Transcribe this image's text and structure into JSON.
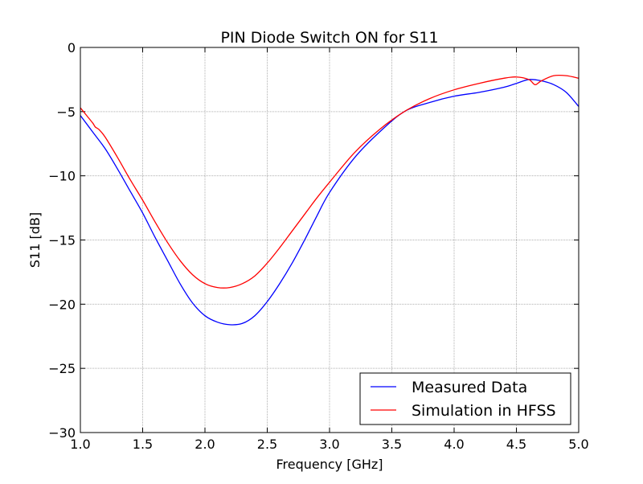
{
  "chart_data": {
    "type": "line",
    "title": "PIN Diode Switch ON for S11",
    "xlabel": "Frequency [GHz]",
    "ylabel": "S11 [dB]",
    "xlim": [
      1.0,
      5.0
    ],
    "ylim": [
      -30,
      0
    ],
    "xticks": [
      1.0,
      1.5,
      2.0,
      2.5,
      3.0,
      3.5,
      4.0,
      4.5,
      5.0
    ],
    "xtick_labels": [
      "1.0",
      "1.5",
      "2.0",
      "2.5",
      "3.0",
      "3.5",
      "4.0",
      "4.5",
      "5.0"
    ],
    "yticks": [
      0,
      -5,
      -10,
      -15,
      -20,
      -25,
      -30
    ],
    "ytick_labels": [
      "0",
      "−5",
      "−10",
      "−15",
      "−20",
      "−25",
      "−30"
    ],
    "grid": true,
    "legend_position": "lower-right",
    "series": [
      {
        "name": "Measured Data",
        "color": "#0000ff",
        "x": [
          1.0,
          1.1,
          1.2,
          1.3,
          1.4,
          1.5,
          1.6,
          1.7,
          1.8,
          1.9,
          2.0,
          2.1,
          2.2,
          2.3,
          2.4,
          2.5,
          2.6,
          2.7,
          2.8,
          2.9,
          3.0,
          3.2,
          3.4,
          3.6,
          3.8,
          4.0,
          4.2,
          4.4,
          4.5,
          4.6,
          4.7,
          4.8,
          4.9,
          5.0
        ],
        "y": [
          -5.3,
          -6.6,
          -7.9,
          -9.5,
          -11.2,
          -12.9,
          -14.8,
          -16.6,
          -18.4,
          -19.9,
          -20.9,
          -21.4,
          -21.6,
          -21.5,
          -20.9,
          -19.8,
          -18.4,
          -16.8,
          -15.0,
          -13.1,
          -11.3,
          -8.6,
          -6.6,
          -5.0,
          -4.3,
          -3.8,
          -3.5,
          -3.1,
          -2.8,
          -2.5,
          -2.6,
          -2.9,
          -3.5,
          -4.6
        ]
      },
      {
        "name": "Simulation in HFSS",
        "color": "#ff0000",
        "x": [
          1.0,
          1.05,
          1.1,
          1.12,
          1.15,
          1.2,
          1.3,
          1.4,
          1.5,
          1.6,
          1.7,
          1.8,
          1.9,
          2.0,
          2.1,
          2.2,
          2.3,
          2.4,
          2.5,
          2.6,
          2.7,
          2.8,
          2.9,
          3.0,
          3.2,
          3.4,
          3.6,
          3.8,
          4.0,
          4.2,
          4.4,
          4.5,
          4.6,
          4.65,
          4.7,
          4.8,
          4.9,
          5.0
        ],
        "y": [
          -4.7,
          -5.3,
          -5.9,
          -6.2,
          -6.4,
          -7.0,
          -8.6,
          -10.3,
          -11.9,
          -13.6,
          -15.2,
          -16.6,
          -17.7,
          -18.4,
          -18.7,
          -18.7,
          -18.4,
          -17.8,
          -16.8,
          -15.6,
          -14.3,
          -13.0,
          -11.7,
          -10.5,
          -8.2,
          -6.4,
          -5.0,
          -4.0,
          -3.3,
          -2.8,
          -2.4,
          -2.3,
          -2.5,
          -2.9,
          -2.6,
          -2.2,
          -2.2,
          -2.4
        ]
      }
    ]
  }
}
